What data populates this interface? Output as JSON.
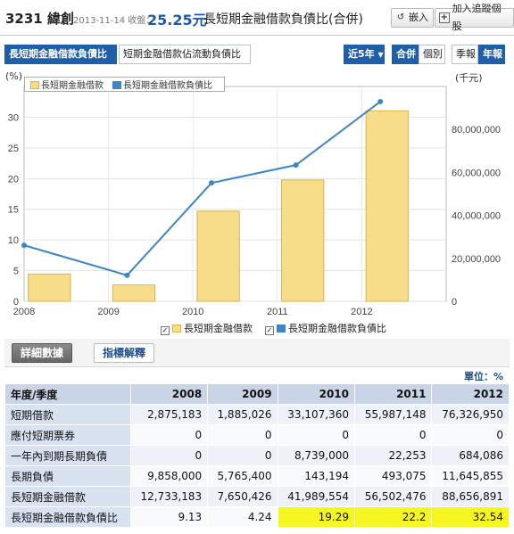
{
  "header": {
    "stock": "3231 緯創",
    "date_label": "2013-11-14 收盤：",
    "price": "25.25元",
    "title": "長短期金融借款負債比(合併)",
    "embed_label": "嵌入",
    "watch_label": "加入追蹤個股"
  },
  "tabs": {
    "left": [
      "長短期金融借款負債比",
      "短期金融借款佔流動負債比"
    ],
    "period": "近5年",
    "scope": [
      "合併",
      "個別"
    ],
    "freq": [
      "季報",
      "年報"
    ]
  },
  "chart": {
    "left_unit": "(%)",
    "right_unit": "(千元)",
    "legend_bar": "長短期金融借款",
    "legend_line": "長短期金融借款負債比",
    "bar_color": "#f7dc8a",
    "line_color": "#3d86c6"
  },
  "chart_data": {
    "type": "bar",
    "categories": [
      "2008",
      "2009",
      "2010",
      "2011",
      "2012"
    ],
    "series": [
      {
        "name": "長短期金融借款",
        "type": "bar",
        "axis": "right",
        "values": [
          12733183,
          7650426,
          41989554,
          56502476,
          88656891
        ]
      },
      {
        "name": "長短期金融借款負債比",
        "type": "line",
        "axis": "left",
        "values": [
          9.13,
          4.24,
          19.29,
          22.2,
          32.54
        ]
      }
    ],
    "ylim_left": [
      0,
      35
    ],
    "yticks_left": [
      "0",
      "5",
      "10",
      "15",
      "20",
      "25",
      "30"
    ],
    "ylim_right": [
      0,
      100000000
    ],
    "yticks_right": [
      "0",
      "20,000,000",
      "40,000,000",
      "60,000,000",
      "80,000,000"
    ],
    "grid": true
  },
  "detail_tabs": [
    "詳細數據",
    "指標解釋"
  ],
  "unit_label": "單位：%",
  "table": {
    "headers": [
      "年度/季度",
      "2008",
      "2009",
      "2010",
      "2011",
      "2012"
    ],
    "rows": [
      [
        "短期借款",
        "2,875,183",
        "1,885,026",
        "33,107,360",
        "55,987,148",
        "76,326,950"
      ],
      [
        "應付短期票券",
        "0",
        "0",
        "0",
        "0",
        "0"
      ],
      [
        "一年內到期長期負債",
        "0",
        "0",
        "8,739,000",
        "22,253",
        "684,086"
      ],
      [
        "長期負債",
        "9,858,000",
        "5,765,400",
        "143,194",
        "493,075",
        "11,645,855"
      ],
      [
        "長短期金融借款",
        "12,733,183",
        "7,650,426",
        "41,989,554",
        "56,502,476",
        "88,656,891"
      ],
      [
        "長短期金融借款負債比",
        "9.13",
        "4.24",
        "19.29",
        "22.2",
        "32.54"
      ]
    ]
  }
}
